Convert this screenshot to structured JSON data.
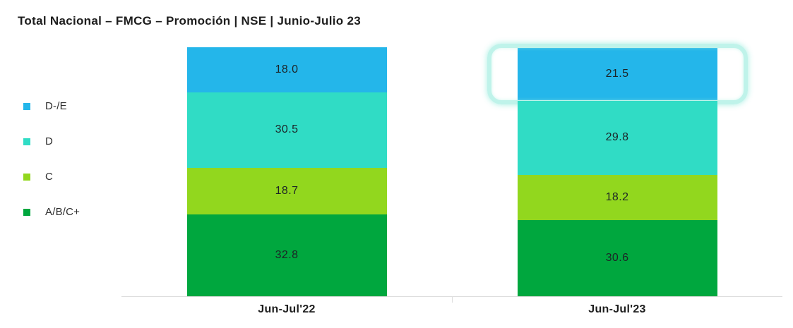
{
  "title": "Total Nacional – FMCG – Promoción | NSE | Junio-Julio 23",
  "chart_data": {
    "type": "bar",
    "stacked": true,
    "orientation": "vertical",
    "categories": [
      "Jun-Jul'22",
      "Jun-Jul'23"
    ],
    "series": [
      {
        "name": "D-/E",
        "color": "#24b6ea",
        "values": [
          18.0,
          21.5
        ]
      },
      {
        "name": "D",
        "color": "#30dcc5",
        "values": [
          30.5,
          29.8
        ]
      },
      {
        "name": "C",
        "color": "#92d71e",
        "values": [
          18.7,
          18.2
        ]
      },
      {
        "name": "A/B/C+",
        "color": "#00a73e",
        "values": [
          32.8,
          30.6
        ]
      }
    ],
    "ylim": [
      0,
      100
    ],
    "grid": false,
    "legend_position": "left",
    "value_labels_shown": true,
    "highlight": {
      "category_index": 1,
      "series_index": 0,
      "style": "rounded-glow-outline",
      "color": "#bff3ea"
    }
  }
}
